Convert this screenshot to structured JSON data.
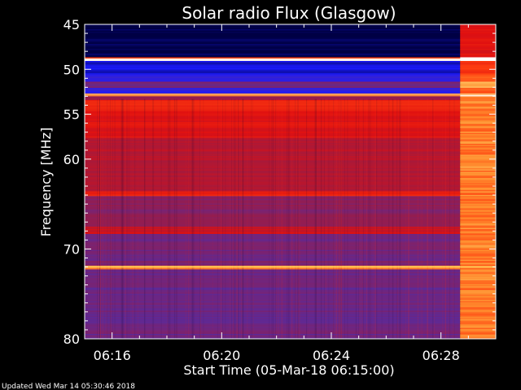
{
  "chart_data": {
    "type": "heatmap",
    "title": "Solar radio Flux (Glasgow)",
    "xlabel": "Start Time (05-Mar-18 06:15:00)",
    "ylabel": "Frequency [MHz]",
    "x_ticks": [
      "06:16",
      "06:20",
      "06:24",
      "06:28"
    ],
    "y_ticks": [
      45,
      50,
      55,
      60,
      70,
      80
    ],
    "xlim_minutes_after_start": [
      0,
      15
    ],
    "ylim": [
      45,
      80
    ],
    "colormap": [
      "#000044",
      "#1a1aff",
      "#5a2a9a",
      "#a01a40",
      "#e01010",
      "#ff4010",
      "#ff9030",
      "#ffe080",
      "#ffffff"
    ],
    "bands": [
      {
        "from": 45,
        "to": 48.6,
        "level": 0.0
      },
      {
        "from": 48.6,
        "to": 48.8,
        "level": 0.65
      },
      {
        "from": 48.8,
        "to": 49.0,
        "level": 0.95
      },
      {
        "from": 49.0,
        "to": 50.5,
        "level": 0.1
      },
      {
        "from": 50.5,
        "to": 51.3,
        "level": 0.18
      },
      {
        "from": 51.3,
        "to": 52.0,
        "level": 0.3
      },
      {
        "from": 52.0,
        "to": 52.6,
        "level": 0.15
      },
      {
        "from": 52.6,
        "to": 53.0,
        "level": 0.7
      },
      {
        "from": 53.0,
        "to": 53.3,
        "level": 0.35
      },
      {
        "from": 53.3,
        "to": 54.5,
        "level": 0.55
      },
      {
        "from": 54.5,
        "to": 57.5,
        "level": 0.5
      },
      {
        "from": 57.5,
        "to": 60.0,
        "level": 0.42
      },
      {
        "from": 60.0,
        "to": 63.5,
        "level": 0.4
      },
      {
        "from": 63.5,
        "to": 64.0,
        "level": 0.55
      },
      {
        "from": 64.0,
        "to": 67.5,
        "level": 0.33
      },
      {
        "from": 67.5,
        "to": 68.2,
        "level": 0.45
      },
      {
        "from": 68.2,
        "to": 71.8,
        "level": 0.3
      },
      {
        "from": 71.8,
        "to": 72.2,
        "level": 0.75
      },
      {
        "from": 72.2,
        "to": 80.0,
        "level": 0.28
      }
    ],
    "burst_start_minutes": 13.7,
    "burst_level": 0.72
  },
  "footer": {
    "updated": "Updated Wed Mar 14 05:30:46 2018"
  }
}
